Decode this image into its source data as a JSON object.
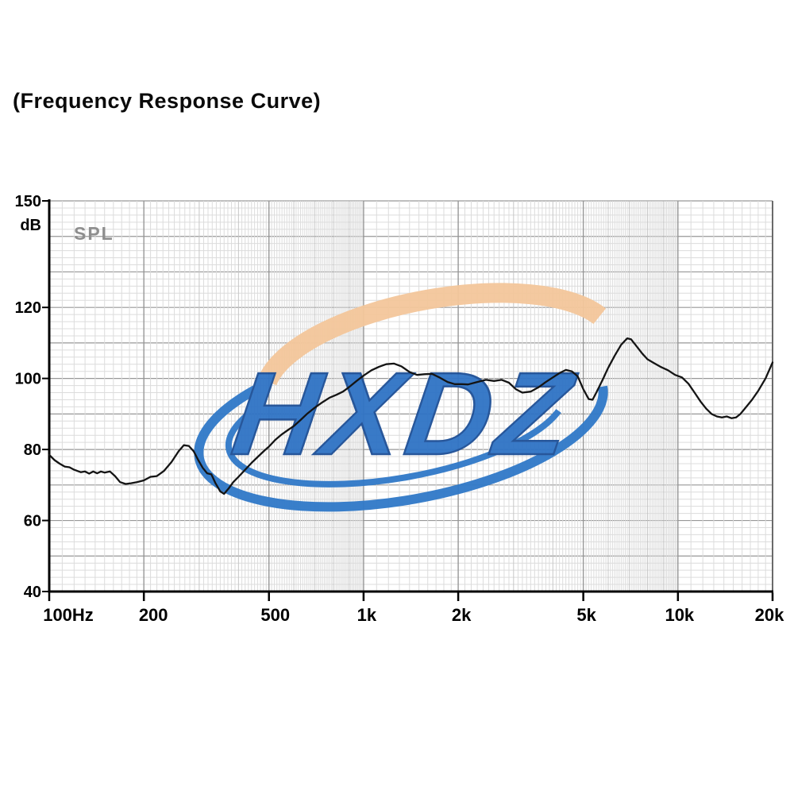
{
  "page": {
    "title": "(Frequency Response Curve)"
  },
  "watermark": {
    "text": "HXDZ",
    "text_color": "#2f73c5",
    "text_outline": "#1d4f96",
    "ring_color": "#3079c8",
    "arc_color": "#f4c79b"
  },
  "colors": {
    "curve": "#141414",
    "axis": "#000000",
    "grid_minor": "#dcdcdc",
    "grid_mid": "#c6c6c6",
    "grid_major": "#979797",
    "tick_label": "#000000",
    "spl_label": "#8e8e8e"
  },
  "chart_data": {
    "type": "line",
    "title": "(Frequency Response Curve)",
    "x_scale": "log",
    "x_unit": "Hz",
    "xlabel": "",
    "ylabel": "dB",
    "series_label": "SPL",
    "xlim": [
      100,
      20000
    ],
    "ylim": [
      40,
      150
    ],
    "grid": {
      "minor_db_step": 2,
      "major_db_step": 10,
      "log_minor_x": true
    },
    "x_ticks": [
      {
        "f": 100,
        "label": "100Hz",
        "dx": 24
      },
      {
        "f": 200,
        "label": "200",
        "dx": 12
      },
      {
        "f": 500,
        "label": "500",
        "dx": 8
      },
      {
        "f": 1000,
        "label": "1k",
        "dx": 4
      },
      {
        "f": 2000,
        "label": "2k",
        "dx": 4
      },
      {
        "f": 5000,
        "label": "5k",
        "dx": 4
      },
      {
        "f": 10000,
        "label": "10k",
        "dx": 2
      },
      {
        "f": 20000,
        "label": "20k",
        "dx": -4
      }
    ],
    "y_ticks": [
      {
        "v": 150,
        "label": "150"
      },
      {
        "v": 120,
        "label": "120"
      },
      {
        "v": 100,
        "label": "100"
      },
      {
        "v": 80,
        "label": "80"
      },
      {
        "v": 60,
        "label": "60"
      },
      {
        "v": 40,
        "label": "40"
      }
    ],
    "points": [
      [
        100,
        78.5
      ],
      [
        104,
        77
      ],
      [
        108,
        76
      ],
      [
        112,
        75.2
      ],
      [
        116,
        75
      ],
      [
        120,
        74.3
      ],
      [
        126,
        73.6
      ],
      [
        130,
        73.8
      ],
      [
        134,
        73.2
      ],
      [
        138,
        73.8
      ],
      [
        142,
        73.3
      ],
      [
        146,
        73.8
      ],
      [
        150,
        73.5
      ],
      [
        156,
        73.8
      ],
      [
        162,
        72.5
      ],
      [
        168,
        70.8
      ],
      [
        175,
        70.3
      ],
      [
        182,
        70.5
      ],
      [
        190,
        70.8
      ],
      [
        200,
        71.3
      ],
      [
        210,
        72.3
      ],
      [
        220,
        72.5
      ],
      [
        232,
        74
      ],
      [
        245,
        76.5
      ],
      [
        258,
        79.5
      ],
      [
        268,
        81.2
      ],
      [
        278,
        81
      ],
      [
        288,
        79.5
      ],
      [
        298,
        77
      ],
      [
        308,
        74.8
      ],
      [
        318,
        73.3
      ],
      [
        328,
        73
      ],
      [
        338,
        70.5
      ],
      [
        350,
        68.2
      ],
      [
        360,
        67.5
      ],
      [
        372,
        69
      ],
      [
        385,
        70.8
      ],
      [
        400,
        72.3
      ],
      [
        420,
        74.3
      ],
      [
        440,
        76.2
      ],
      [
        462,
        78
      ],
      [
        485,
        79.8
      ],
      [
        500,
        80.8
      ],
      [
        525,
        82.8
      ],
      [
        550,
        84.3
      ],
      [
        575,
        85.5
      ],
      [
        600,
        86.6
      ],
      [
        630,
        88.3
      ],
      [
        660,
        90
      ],
      [
        700,
        91.8
      ],
      [
        740,
        93.3
      ],
      [
        780,
        94.6
      ],
      [
        820,
        95.4
      ],
      [
        860,
        96.3
      ],
      [
        900,
        97.6
      ],
      [
        950,
        99.3
      ],
      [
        1000,
        100.8
      ],
      [
        1060,
        102.3
      ],
      [
        1120,
        103.3
      ],
      [
        1180,
        104
      ],
      [
        1250,
        104.2
      ],
      [
        1320,
        103.4
      ],
      [
        1400,
        101.8
      ],
      [
        1480,
        101
      ],
      [
        1560,
        101.2
      ],
      [
        1650,
        101.3
      ],
      [
        1750,
        100.2
      ],
      [
        1850,
        99
      ],
      [
        1950,
        98.4
      ],
      [
        2050,
        98.4
      ],
      [
        2150,
        98.3
      ],
      [
        2300,
        99
      ],
      [
        2450,
        99.6
      ],
      [
        2600,
        99.3
      ],
      [
        2750,
        99.6
      ],
      [
        2900,
        98.8
      ],
      [
        3050,
        97
      ],
      [
        3200,
        96
      ],
      [
        3400,
        96.3
      ],
      [
        3600,
        97.5
      ],
      [
        3800,
        99
      ],
      [
        4000,
        100.3
      ],
      [
        4200,
        101.5
      ],
      [
        4400,
        102.4
      ],
      [
        4600,
        102
      ],
      [
        4800,
        100.6
      ],
      [
        5000,
        97
      ],
      [
        5200,
        94.2
      ],
      [
        5350,
        94
      ],
      [
        5500,
        96
      ],
      [
        5750,
        99.5
      ],
      [
        6000,
        103
      ],
      [
        6300,
        106.5
      ],
      [
        6600,
        109.5
      ],
      [
        6900,
        111.3
      ],
      [
        7100,
        111
      ],
      [
        7400,
        109
      ],
      [
        7700,
        107
      ],
      [
        8000,
        105.4
      ],
      [
        8400,
        104.3
      ],
      [
        8800,
        103.3
      ],
      [
        9300,
        102.3
      ],
      [
        9800,
        101
      ],
      [
        10300,
        100.3
      ],
      [
        10800,
        98.5
      ],
      [
        11300,
        96
      ],
      [
        11800,
        93.5
      ],
      [
        12300,
        91.5
      ],
      [
        12800,
        90
      ],
      [
        13300,
        89.3
      ],
      [
        13800,
        89
      ],
      [
        14300,
        89.3
      ],
      [
        14800,
        88.8
      ],
      [
        15300,
        89
      ],
      [
        15800,
        90
      ],
      [
        16500,
        92
      ],
      [
        17200,
        94
      ],
      [
        18000,
        96.5
      ],
      [
        19000,
        100
      ],
      [
        20000,
        104.5
      ]
    ]
  }
}
